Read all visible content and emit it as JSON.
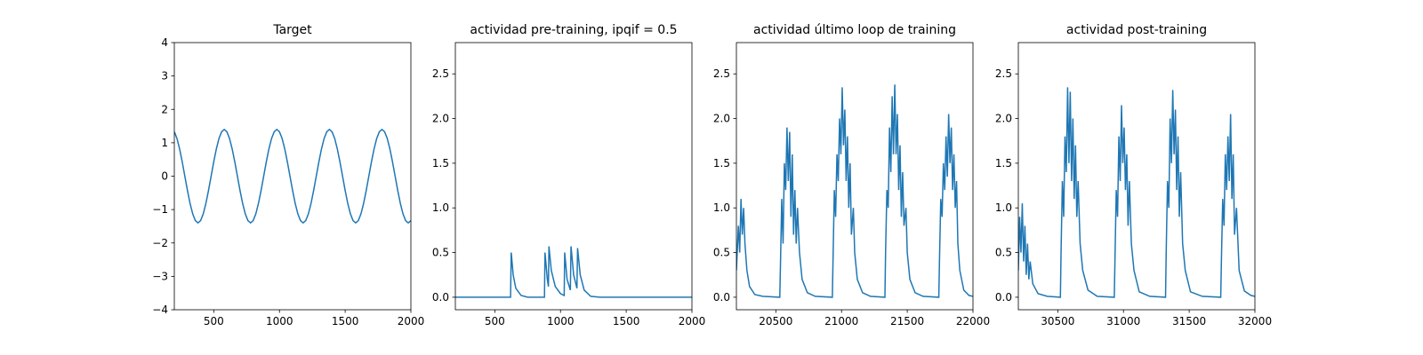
{
  "chart_data": [
    {
      "type": "line",
      "title": "Target",
      "color": "#1f77b4",
      "x": [
        200,
        220,
        240,
        260,
        280,
        300,
        320,
        340,
        360,
        380,
        400,
        420,
        440,
        460,
        480,
        500,
        520,
        540,
        560,
        580,
        600,
        620,
        640,
        660,
        680,
        700,
        720,
        740,
        760,
        780,
        800,
        820,
        840,
        860,
        880,
        900,
        920,
        940,
        960,
        980,
        1000,
        1020,
        1040,
        1060,
        1080,
        1100,
        1120,
        1140,
        1160,
        1180,
        1200,
        1220,
        1240,
        1260,
        1280,
        1300,
        1320,
        1340,
        1360,
        1380,
        1400,
        1420,
        1440,
        1460,
        1480,
        1500,
        1520,
        1540,
        1560,
        1580,
        1600,
        1620,
        1640,
        1660,
        1680,
        1700,
        1720,
        1740,
        1760,
        1780,
        1800,
        1820,
        1840,
        1860,
        1880,
        1900,
        1920,
        1940,
        1960,
        1980,
        2000
      ],
      "values": [
        1.33,
        1.13,
        0.82,
        0.43,
        0,
        -0.43,
        -0.82,
        -1.13,
        -1.33,
        -1.4,
        -1.33,
        -1.13,
        -0.82,
        -0.43,
        0,
        0.43,
        0.82,
        1.13,
        1.33,
        1.4,
        1.33,
        1.13,
        0.82,
        0.43,
        0,
        -0.43,
        -0.82,
        -1.13,
        -1.33,
        -1.4,
        -1.33,
        -1.13,
        -0.82,
        -0.43,
        0,
        0.43,
        0.82,
        1.13,
        1.33,
        1.4,
        1.33,
        1.13,
        0.82,
        0.43,
        0,
        -0.43,
        -0.82,
        -1.13,
        -1.33,
        -1.4,
        -1.33,
        -1.13,
        -0.82,
        -0.43,
        0,
        0.43,
        0.82,
        1.13,
        1.33,
        1.4,
        1.33,
        1.13,
        0.82,
        0.43,
        0,
        -0.43,
        -0.82,
        -1.13,
        -1.33,
        -1.4,
        -1.33,
        -1.13,
        -0.82,
        -0.43,
        0,
        0.43,
        0.82,
        1.13,
        1.33,
        1.4,
        1.33,
        1.13,
        0.82,
        0.43,
        0,
        -0.43,
        -0.82,
        -1.13,
        -1.33,
        -1.4,
        -1.33
      ],
      "xlim": [
        200,
        2000
      ],
      "xticks": [
        500,
        1000,
        1500,
        2000
      ],
      "ylim": [
        -4,
        4
      ],
      "yticks": [
        {
          "value": -4,
          "label": "−4"
        },
        {
          "value": -3,
          "label": "−3"
        },
        {
          "value": -2,
          "label": "−2"
        },
        {
          "value": -1,
          "label": "−1"
        },
        0,
        1,
        2,
        3,
        4
      ]
    },
    {
      "type": "line",
      "title": "actividad pre-training, ipqif = 0.5",
      "color": "#1f77b4",
      "x": [
        200,
        620,
        625,
        640,
        660,
        700,
        750,
        878,
        882,
        900,
        908,
        912,
        930,
        960,
        1000,
        1028,
        1032,
        1050,
        1075,
        1080,
        1100,
        1125,
        1130,
        1150,
        1180,
        1230,
        1300,
        2000
      ],
      "values": [
        0,
        0,
        0.5,
        0.25,
        0.1,
        0.02,
        0,
        0,
        0.5,
        0.2,
        0.12,
        0.57,
        0.3,
        0.12,
        0.04,
        0.02,
        0.5,
        0.2,
        0.08,
        0.57,
        0.25,
        0.1,
        0.55,
        0.25,
        0.08,
        0.01,
        0,
        0
      ],
      "xlim": [
        200,
        2000
      ],
      "xticks": [
        500,
        1000,
        1500,
        2000
      ],
      "ylim": [
        -0.14,
        2.85
      ],
      "yticks": [
        {
          "value": 0,
          "label": "0.0"
        },
        0.5,
        {
          "value": 1,
          "label": "1.0"
        },
        1.5,
        {
          "value": 2,
          "label": "2.0"
        },
        2.5
      ]
    },
    {
      "type": "line",
      "title": "actividad último loop de training",
      "color": "#1f77b4",
      "x": [
        20200,
        20215,
        20225,
        20235,
        20245,
        20255,
        20265,
        20280,
        20300,
        20340,
        20400,
        20530,
        20535,
        20545,
        20555,
        20565,
        20575,
        20585,
        20595,
        20605,
        20615,
        20625,
        20635,
        20645,
        20655,
        20665,
        20680,
        20700,
        20740,
        20800,
        20930,
        20935,
        20945,
        20955,
        20965,
        20975,
        20985,
        20995,
        21005,
        21015,
        21025,
        21035,
        21045,
        21055,
        21065,
        21075,
        21090,
        21100,
        21120,
        21160,
        21220,
        21330,
        21335,
        21345,
        21355,
        21365,
        21375,
        21385,
        21395,
        21405,
        21415,
        21425,
        21435,
        21445,
        21455,
        21465,
        21475,
        21490,
        21500,
        21520,
        21560,
        21620,
        21740,
        21745,
        21755,
        21765,
        21775,
        21785,
        21795,
        21805,
        21815,
        21825,
        21835,
        21845,
        21855,
        21865,
        21875,
        21885,
        21900,
        21930,
        21970,
        22000
      ],
      "values": [
        0.3,
        0.8,
        0.5,
        1.1,
        0.7,
        1.0,
        0.6,
        0.3,
        0.12,
        0.03,
        0.01,
        0,
        0.35,
        1.1,
        0.6,
        1.5,
        1.2,
        1.9,
        1.3,
        1.85,
        0.9,
        1.6,
        0.7,
        1.2,
        0.6,
        1.0,
        0.5,
        0.2,
        0.05,
        0.01,
        0,
        0.4,
        1.2,
        0.9,
        1.6,
        1.3,
        2.0,
        1.6,
        2.35,
        1.7,
        2.1,
        1.3,
        1.8,
        1.0,
        1.5,
        0.7,
        1.0,
        0.5,
        0.2,
        0.05,
        0.01,
        0,
        0.5,
        1.2,
        1.0,
        1.9,
        1.4,
        2.25,
        1.6,
        2.38,
        1.6,
        2.05,
        1.2,
        1.7,
        0.9,
        1.4,
        0.8,
        1.0,
        0.5,
        0.2,
        0.05,
        0.01,
        0,
        0.4,
        1.1,
        0.9,
        1.5,
        1.2,
        1.8,
        1.35,
        2.05,
        1.5,
        1.9,
        1.2,
        1.6,
        1.0,
        1.3,
        0.6,
        0.3,
        0.08,
        0.02,
        0.01
      ],
      "xlim": [
        20200,
        22000
      ],
      "xticks": [
        20500,
        21000,
        21500,
        22000
      ],
      "ylim": [
        -0.14,
        2.85
      ],
      "yticks": [
        {
          "value": 0,
          "label": "0.0"
        },
        0.5,
        {
          "value": 1,
          "label": "1.0"
        },
        1.5,
        {
          "value": 2,
          "label": "2.0"
        },
        2.5
      ]
    },
    {
      "type": "line",
      "title": "actividad post-training",
      "color": "#1f77b4",
      "x": [
        30200,
        30210,
        30220,
        30230,
        30240,
        30250,
        30260,
        30270,
        30280,
        30290,
        30310,
        30350,
        30420,
        30520,
        30525,
        30535,
        30545,
        30555,
        30565,
        30575,
        30585,
        30595,
        30605,
        30615,
        30625,
        30635,
        30645,
        30655,
        30670,
        30690,
        30730,
        30800,
        30930,
        30935,
        30945,
        30955,
        30965,
        30975,
        30985,
        30995,
        31005,
        31015,
        31025,
        31035,
        31045,
        31060,
        31080,
        31120,
        31200,
        31320,
        31325,
        31335,
        31345,
        31355,
        31365,
        31375,
        31385,
        31395,
        31405,
        31415,
        31425,
        31435,
        31450,
        31470,
        31510,
        31600,
        31740,
        31745,
        31755,
        31765,
        31775,
        31785,
        31795,
        31805,
        31815,
        31825,
        31835,
        31845,
        31860,
        31880,
        31920,
        31970,
        32000
      ],
      "values": [
        0.3,
        0.9,
        0.5,
        1.05,
        0.4,
        0.8,
        0.25,
        0.6,
        0.2,
        0.4,
        0.15,
        0.04,
        0.01,
        0,
        0.5,
        1.3,
        0.9,
        1.8,
        1.4,
        2.35,
        1.5,
        2.3,
        1.3,
        2.0,
        1.1,
        1.7,
        0.9,
        1.3,
        0.6,
        0.3,
        0.08,
        0.01,
        0,
        0.4,
        1.2,
        0.9,
        1.8,
        1.3,
        2.15,
        1.5,
        1.9,
        1.2,
        1.6,
        0.8,
        1.3,
        0.6,
        0.3,
        0.06,
        0.01,
        0,
        0.5,
        1.3,
        1.0,
        2.0,
        1.5,
        2.32,
        1.6,
        2.1,
        1.2,
        1.8,
        0.9,
        1.4,
        0.6,
        0.3,
        0.06,
        0.01,
        0,
        0.4,
        1.1,
        0.8,
        1.6,
        1.2,
        1.8,
        1.3,
        2.05,
        1.1,
        1.6,
        0.7,
        1.0,
        0.3,
        0.07,
        0.02,
        0.01
      ],
      "xlim": [
        30200,
        32000
      ],
      "xticks": [
        30500,
        31000,
        31500,
        32000
      ],
      "ylim": [
        -0.14,
        2.85
      ],
      "yticks": [
        {
          "value": 0,
          "label": "0.0"
        },
        0.5,
        {
          "value": 1,
          "label": "1.0"
        },
        1.5,
        {
          "value": 2,
          "label": "2.0"
        },
        2.5
      ]
    }
  ]
}
